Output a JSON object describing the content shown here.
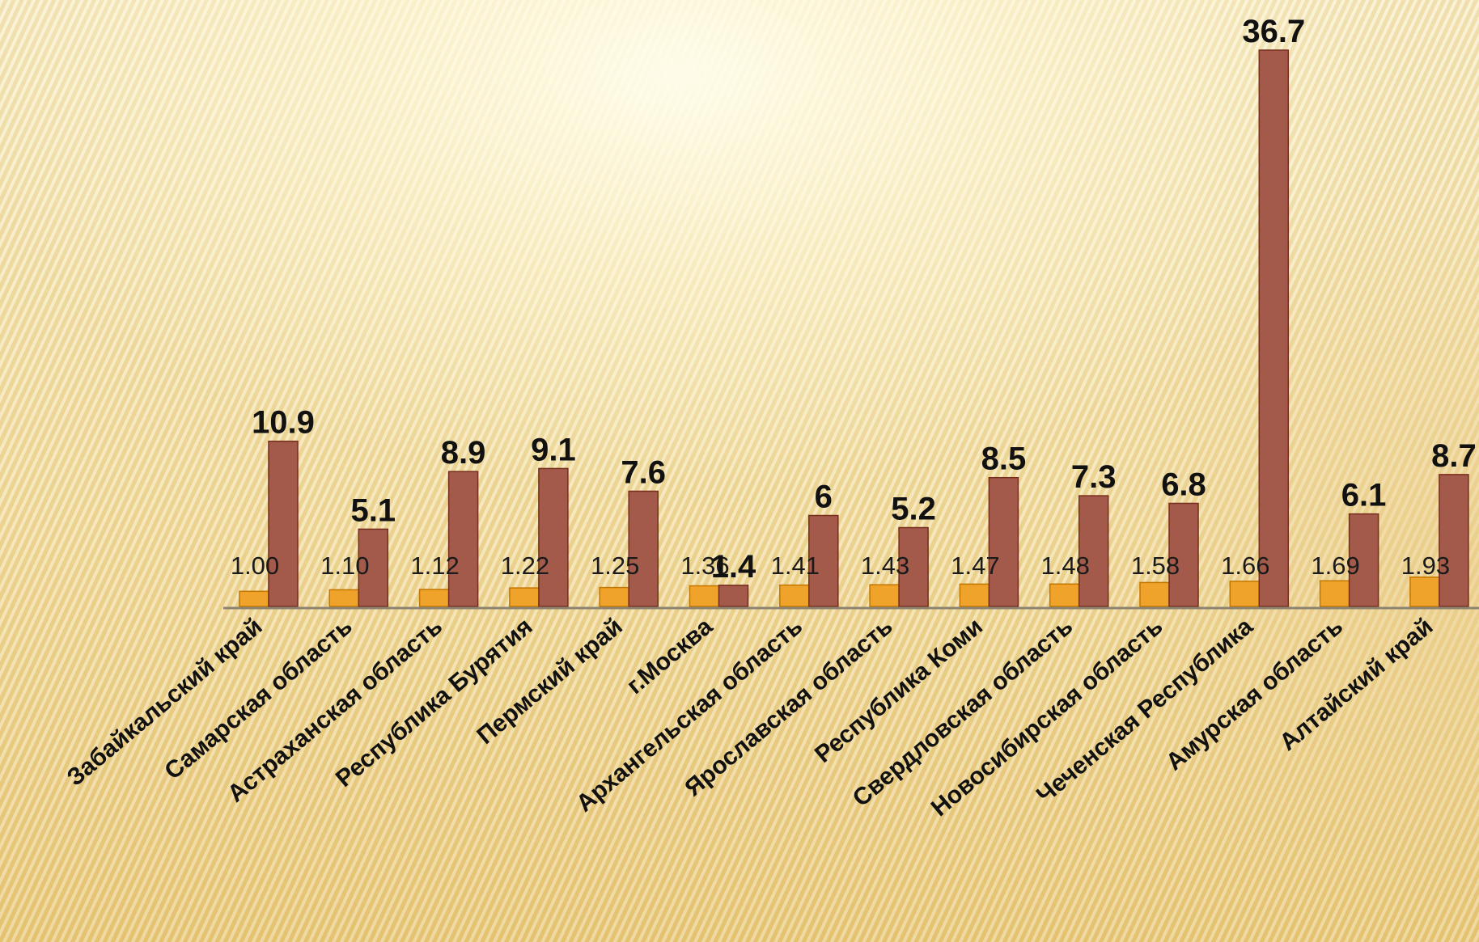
{
  "chart_data": {
    "type": "bar",
    "categories": [
      "Забайкальский край",
      "Самарская область",
      "Астраханская область",
      "Республика Бурятия",
      "Пермский край",
      "г.Москва",
      "Архангельская область",
      "Ярославская область",
      "Республика Коми",
      "Свердловская область",
      "Новосибирская область",
      "Чеченская Республика",
      "Амурская область",
      "Алтайский край"
    ],
    "series": [
      {
        "color": "#f0a32a",
        "values": [
          1.0,
          1.1,
          1.12,
          1.22,
          1.25,
          1.36,
          1.41,
          1.43,
          1.47,
          1.48,
          1.58,
          1.66,
          1.69,
          1.93
        ],
        "labels": [
          "1.00",
          "1.10",
          "1.12",
          "1.22",
          "1.25",
          "1.36",
          "1.41",
          "1.43",
          "1.47",
          "1.48",
          "1.58",
          "1.66",
          "1.69",
          "1.93"
        ]
      },
      {
        "color": "#a35a4a",
        "values": [
          10.9,
          5.1,
          8.9,
          9.1,
          7.6,
          1.4,
          6,
          5.2,
          8.5,
          7.3,
          6.8,
          36.7,
          6.1,
          8.7
        ],
        "labels": [
          "10.9",
          "5.1",
          "8.9",
          "9.1",
          "7.6",
          "1.4",
          "6",
          "5.2",
          "8.5",
          "7.3",
          "6.8",
          "36.7",
          "6.1",
          "8.7"
        ]
      }
    ],
    "ylim": [
      0,
      36.7
    ],
    "grid": false,
    "legend": "none"
  }
}
